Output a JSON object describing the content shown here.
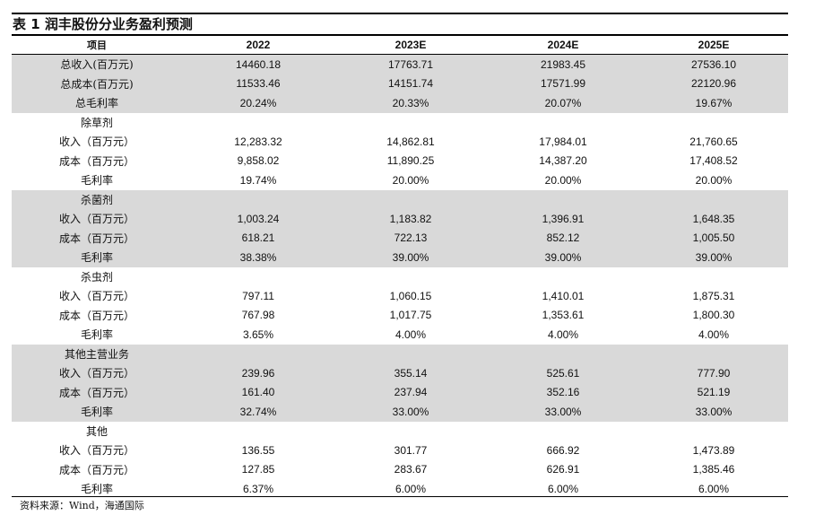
{
  "title": "表 1 润丰股份分业务盈利预测",
  "header": [
    "项目",
    "2022",
    "2023E",
    "2024E",
    "2025E"
  ],
  "rows": [
    {
      "label": "总收入(百万元)",
      "values": [
        "14460.18",
        "17763.71",
        "21983.45",
        "27536.10"
      ]
    },
    {
      "label": "总成本(百万元)",
      "values": [
        "11533.46",
        "14151.74",
        "17571.99",
        "22120.96"
      ]
    },
    {
      "label": "总毛利率",
      "values": [
        "20.24%",
        "20.33%",
        "20.07%",
        "19.67%"
      ]
    },
    {
      "label": "除草剂",
      "values": [
        "",
        "",
        "",
        ""
      ]
    },
    {
      "label": "收入（百万元）",
      "values": [
        "12,283.32",
        "14,862.81",
        "17,984.01",
        "21,760.65"
      ]
    },
    {
      "label": "成本（百万元）",
      "values": [
        "9,858.02",
        "11,890.25",
        "14,387.20",
        "17,408.52"
      ]
    },
    {
      "label": "毛利率",
      "values": [
        "19.74%",
        "20.00%",
        "20.00%",
        "20.00%"
      ]
    },
    {
      "label": "杀菌剂",
      "values": [
        "",
        "",
        "",
        ""
      ]
    },
    {
      "label": "收入（百万元）",
      "values": [
        "1,003.24",
        "1,183.82",
        "1,396.91",
        "1,648.35"
      ]
    },
    {
      "label": "成本（百万元）",
      "values": [
        "618.21",
        "722.13",
        "852.12",
        "1,005.50"
      ]
    },
    {
      "label": "毛利率",
      "values": [
        "38.38%",
        "39.00%",
        "39.00%",
        "39.00%"
      ]
    },
    {
      "label": "杀虫剂",
      "values": [
        "",
        "",
        "",
        ""
      ]
    },
    {
      "label": "收入（百万元）",
      "values": [
        "797.11",
        "1,060.15",
        "1,410.01",
        "1,875.31"
      ]
    },
    {
      "label": "成本（百万元）",
      "values": [
        "767.98",
        "1,017.75",
        "1,353.61",
        "1,800.30"
      ]
    },
    {
      "label": "毛利率",
      "values": [
        "3.65%",
        "4.00%",
        "4.00%",
        "4.00%"
      ]
    },
    {
      "label": "其他主营业务",
      "values": [
        "",
        "",
        "",
        ""
      ]
    },
    {
      "label": "收入（百万元）",
      "values": [
        "239.96",
        "355.14",
        "525.61",
        "777.90"
      ]
    },
    {
      "label": "成本（百万元）",
      "values": [
        "161.40",
        "237.94",
        "352.16",
        "521.19"
      ]
    },
    {
      "label": "毛利率",
      "values": [
        "32.74%",
        "33.00%",
        "33.00%",
        "33.00%"
      ]
    },
    {
      "label": "其他",
      "values": [
        "",
        "",
        "",
        ""
      ]
    },
    {
      "label": "收入（百万元）",
      "values": [
        "136.55",
        "301.77",
        "666.92",
        "1,473.89"
      ]
    },
    {
      "label": "成本（百万元）",
      "values": [
        "127.85",
        "283.67",
        "626.91",
        "1,385.46"
      ]
    },
    {
      "label": "毛利率",
      "values": [
        "6.37%",
        "6.00%",
        "6.00%",
        "6.00%"
      ]
    }
  ],
  "shaded_row_indices": [
    0,
    1,
    2,
    7,
    8,
    9,
    10,
    15,
    16,
    17,
    18
  ],
  "colors": {
    "shade": "#d9d9d9",
    "rule": "#000000",
    "text": "#111111"
  },
  "source": "资料来源：Wind，海通国际"
}
